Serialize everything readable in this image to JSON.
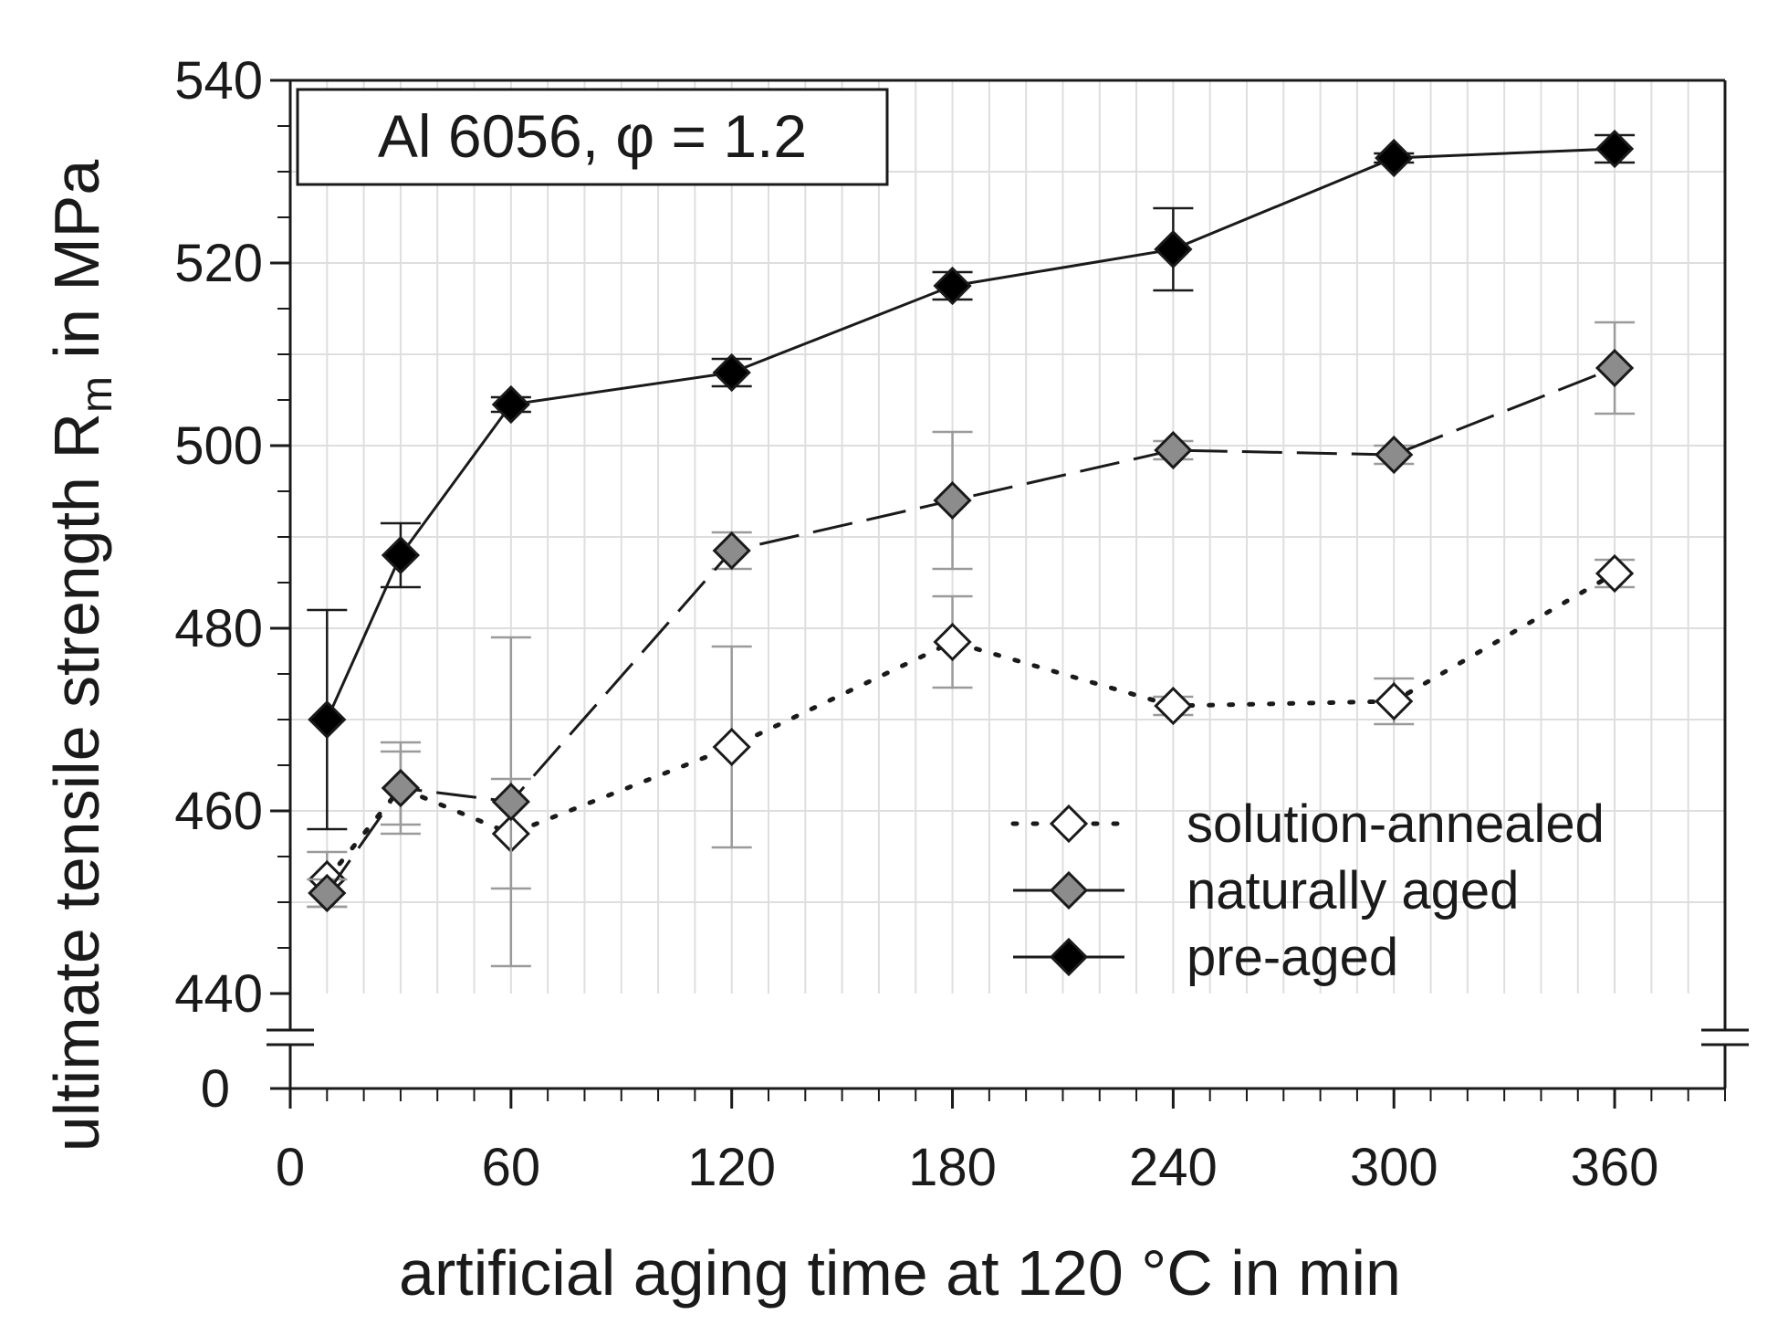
{
  "chart_data": {
    "type": "line",
    "annotation": "Al 6056, φ = 1.2",
    "xlabel": "artificial aging time at 120 °C in min",
    "ylabel": {
      "main": "ultimate tensile strength R",
      "subscript": "m",
      "suffix": " in MPa"
    },
    "xlim": [
      0,
      390
    ],
    "ylim": [
      440,
      540
    ],
    "y_axis_break": true,
    "y_break_value": 0,
    "x_ticks": [
      0,
      60,
      120,
      180,
      240,
      300,
      360
    ],
    "y_ticks": [
      440,
      460,
      480,
      500,
      520,
      540
    ],
    "grid": true,
    "legend_position": "bottom-right",
    "series": [
      {
        "name": "solution-annealed",
        "line_style": "dotted",
        "marker_fill": "#ffffff",
        "x": [
          10,
          30,
          60,
          120,
          180,
          240,
          300,
          360
        ],
        "y": [
          452.5,
          462.5,
          457.5,
          467,
          478.5,
          471.5,
          472,
          486
        ],
        "error": [
          3,
          4,
          6,
          11,
          5,
          1,
          2.5,
          1.5
        ]
      },
      {
        "name": "naturally aged",
        "line_style": "dashed",
        "marker_fill": "#8c8c8c",
        "x": [
          10,
          30,
          60,
          120,
          180,
          240,
          300,
          360
        ],
        "y": [
          451,
          462.5,
          461,
          488.5,
          494,
          499.5,
          499,
          508.5
        ],
        "error": [
          1.5,
          5,
          18,
          2,
          7.5,
          1,
          1,
          5
        ]
      },
      {
        "name": "pre-aged",
        "line_style": "solid",
        "marker_fill": "#000000",
        "x": [
          10,
          30,
          60,
          120,
          180,
          240,
          300,
          360
        ],
        "y": [
          470,
          488,
          504.5,
          508,
          517.5,
          521.5,
          531.5,
          532.5
        ],
        "error": [
          12,
          3.5,
          0.8,
          1.5,
          1.5,
          4.5,
          0.5,
          1.5
        ]
      }
    ]
  }
}
